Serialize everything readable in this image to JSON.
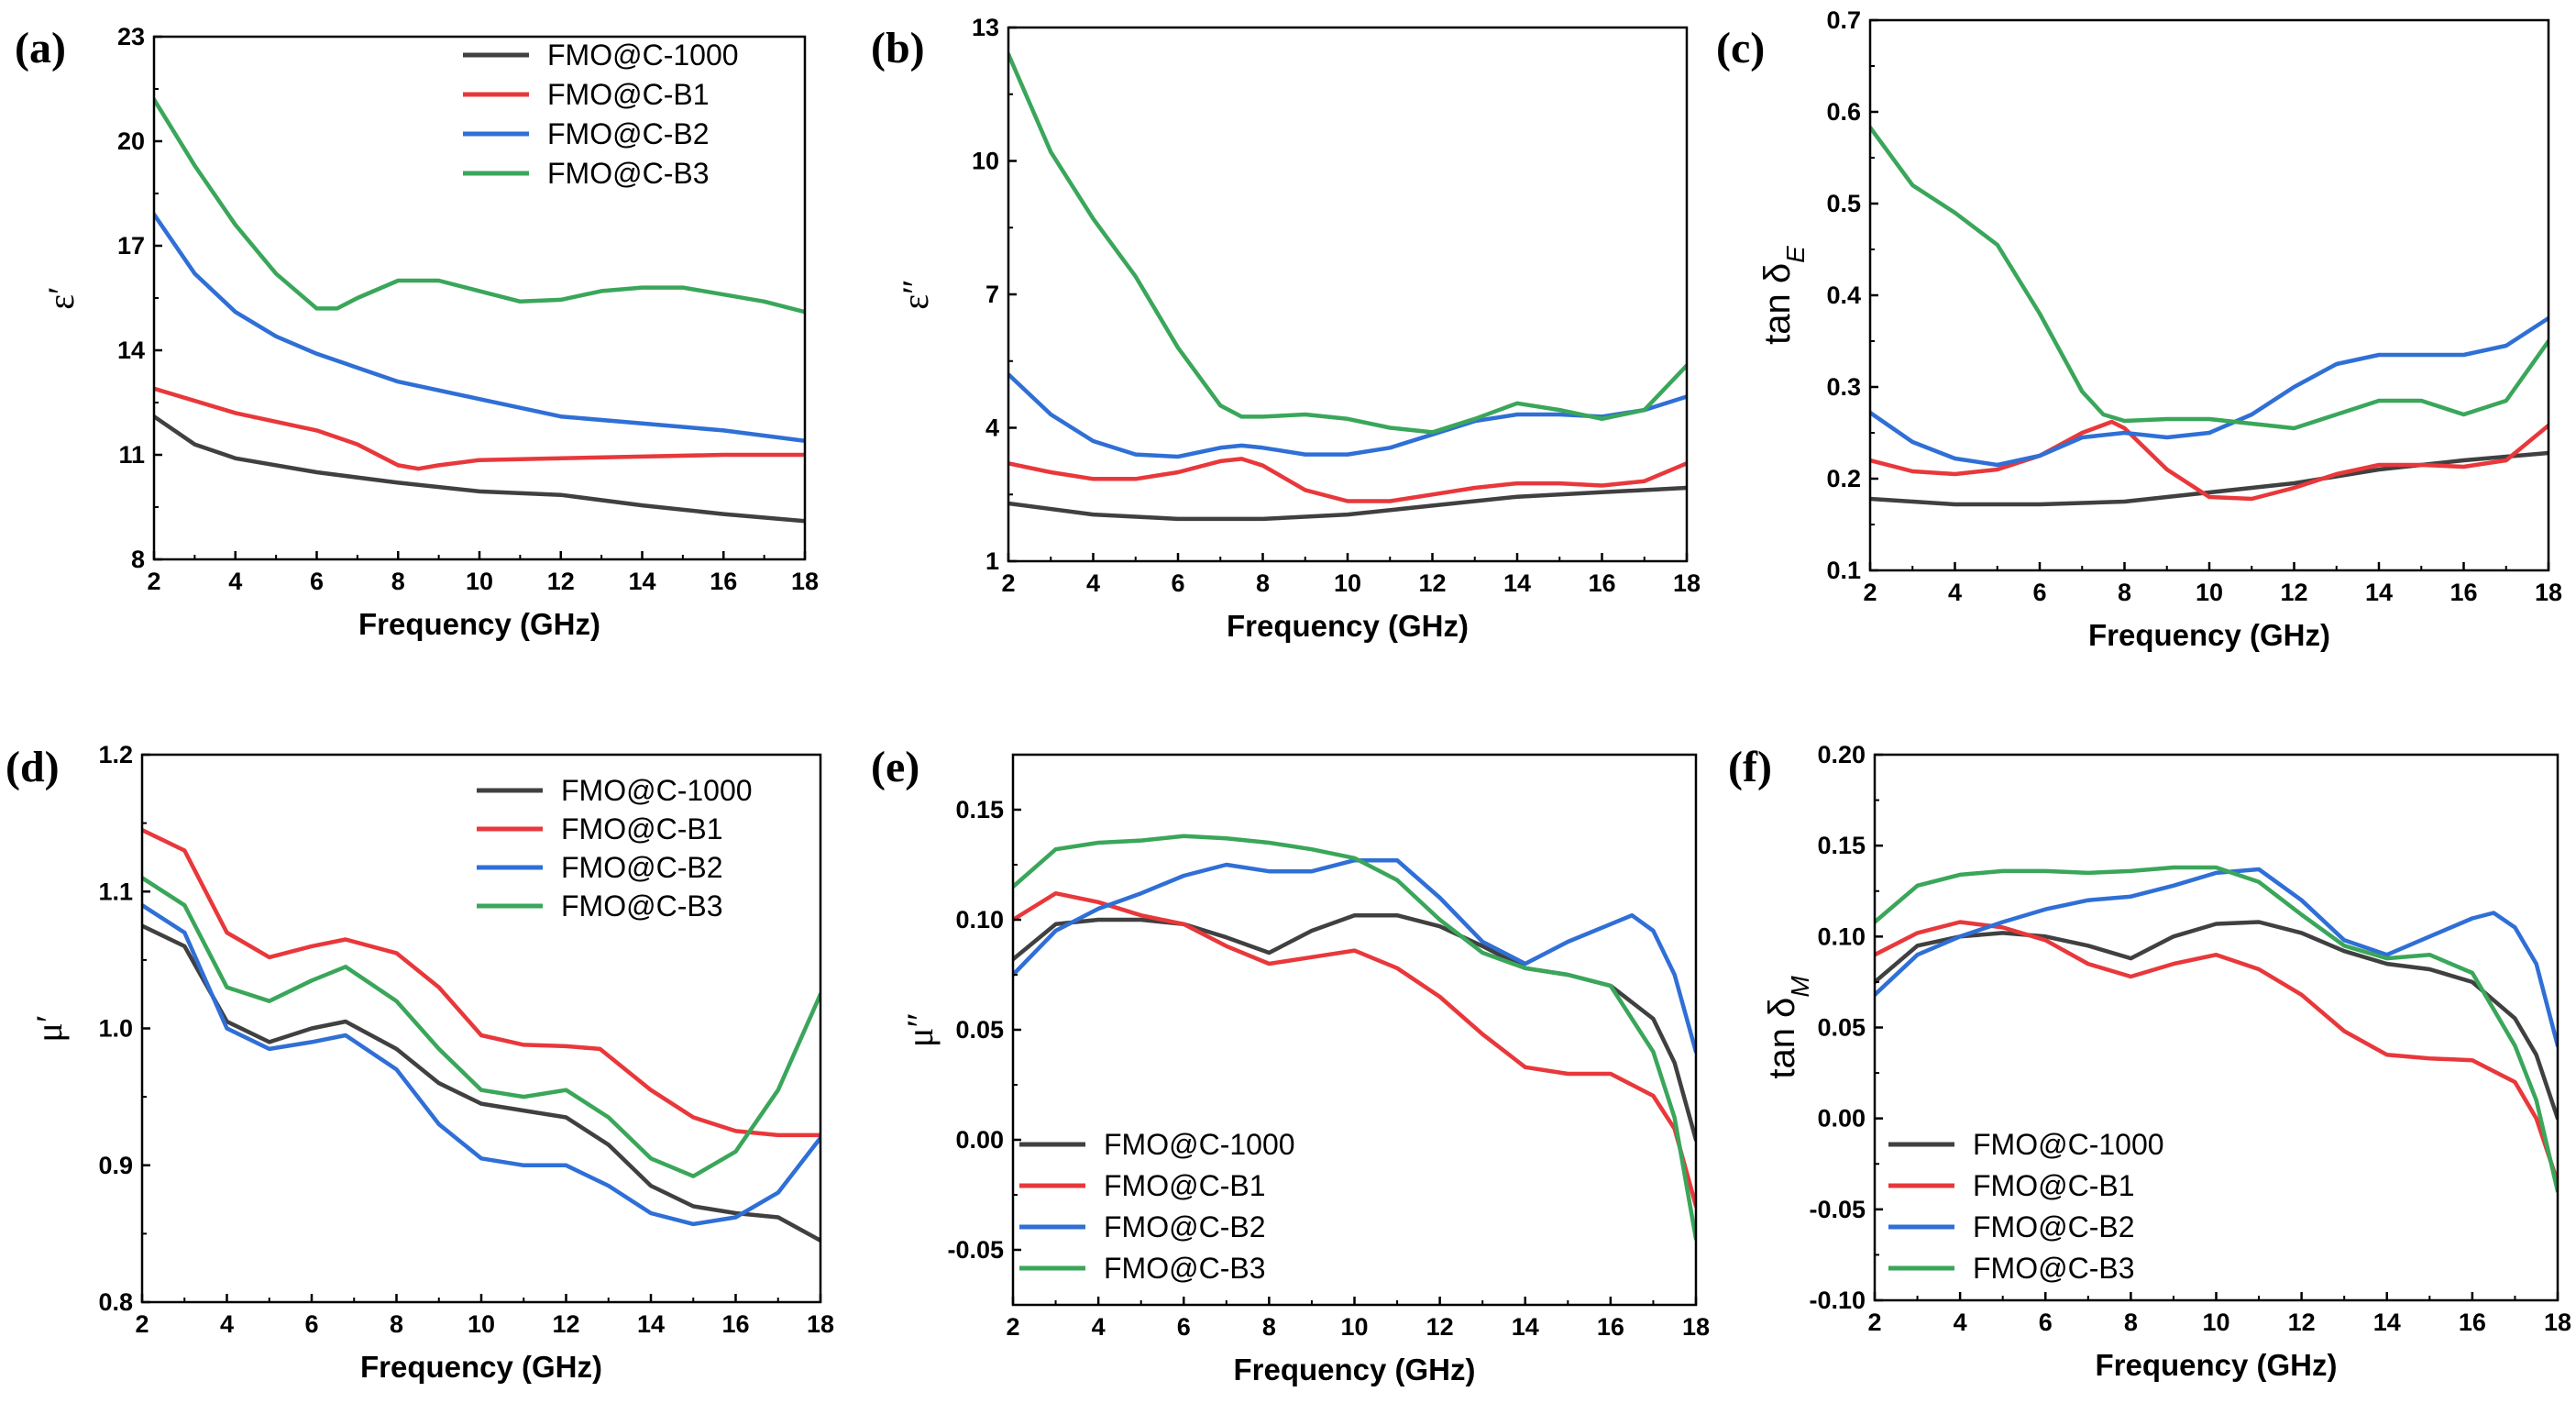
{
  "chart_data": [
    {
      "panel": "(a)",
      "type": "line",
      "xlabel": "Frequency (GHz)",
      "ylabel": "ε′",
      "xlim": [
        2,
        18
      ],
      "ylim": [
        8,
        23
      ],
      "xticks": [
        "2",
        "4",
        "6",
        "8",
        "10",
        "12",
        "14",
        "16",
        "18"
      ],
      "yticks": [
        "8",
        "11",
        "14",
        "17",
        "20",
        "23"
      ],
      "legend": "top-right",
      "series": [
        {
          "name": "FMO@C-1000",
          "x": [
            2,
            3,
            4,
            6,
            8,
            10,
            12,
            14,
            16,
            18
          ],
          "y": [
            12.1,
            11.3,
            10.9,
            10.5,
            10.2,
            9.95,
            9.85,
            9.55,
            9.3,
            9.1
          ]
        },
        {
          "name": "FMO@C-B1",
          "x": [
            2,
            4,
            6,
            7,
            8,
            8.5,
            9,
            10,
            12,
            14,
            16,
            18
          ],
          "y": [
            12.9,
            12.2,
            11.7,
            11.3,
            10.7,
            10.6,
            10.7,
            10.85,
            10.9,
            10.95,
            11.0,
            11.0
          ]
        },
        {
          "name": "FMO@C-B2",
          "x": [
            2,
            3,
            4,
            5,
            6,
            8,
            10,
            12,
            14,
            16,
            18
          ],
          "y": [
            17.9,
            16.2,
            15.1,
            14.4,
            13.9,
            13.1,
            12.6,
            12.1,
            11.9,
            11.7,
            11.4
          ]
        },
        {
          "name": "FMO@C-B3",
          "x": [
            2,
            3,
            4,
            5,
            6,
            6.5,
            7,
            8,
            9,
            10,
            11,
            12,
            13,
            14,
            15,
            16,
            17,
            18
          ],
          "y": [
            21.2,
            19.3,
            17.6,
            16.2,
            15.2,
            15.2,
            15.5,
            16.0,
            16.0,
            15.7,
            15.4,
            15.45,
            15.7,
            15.8,
            15.8,
            15.6,
            15.4,
            15.1
          ]
        }
      ]
    },
    {
      "panel": "(b)",
      "type": "line",
      "xlabel": "Frequency (GHz)",
      "ylabel": "ε″",
      "xlim": [
        2,
        18
      ],
      "ylim": [
        1,
        13
      ],
      "xticks": [
        "2",
        "4",
        "6",
        "8",
        "10",
        "12",
        "14",
        "16",
        "18"
      ],
      "yticks": [
        "1",
        "4",
        "7",
        "10",
        "13"
      ],
      "legend": "none",
      "series": [
        {
          "name": "FMO@C-1000",
          "x": [
            2,
            4,
            6,
            8,
            10,
            12,
            14,
            16,
            18
          ],
          "y": [
            2.3,
            2.05,
            1.95,
            1.95,
            2.05,
            2.25,
            2.45,
            2.55,
            2.65
          ]
        },
        {
          "name": "FMO@C-B1",
          "x": [
            2,
            3,
            4,
            5,
            6,
            7,
            7.5,
            8,
            9,
            10,
            11,
            12,
            13,
            14,
            15,
            16,
            17,
            18
          ],
          "y": [
            3.2,
            3.0,
            2.85,
            2.85,
            3.0,
            3.25,
            3.3,
            3.15,
            2.6,
            2.35,
            2.35,
            2.5,
            2.65,
            2.75,
            2.75,
            2.7,
            2.8,
            3.2
          ]
        },
        {
          "name": "FMO@C-B2",
          "x": [
            2,
            3,
            4,
            5,
            6,
            7,
            7.5,
            8,
            9,
            10,
            11,
            12,
            13,
            14,
            15,
            16,
            17,
            18
          ],
          "y": [
            5.2,
            4.3,
            3.7,
            3.4,
            3.35,
            3.55,
            3.6,
            3.55,
            3.4,
            3.4,
            3.55,
            3.85,
            4.15,
            4.3,
            4.3,
            4.25,
            4.4,
            4.7
          ]
        },
        {
          "name": "FMO@C-B3",
          "x": [
            2,
            3,
            4,
            5,
            6,
            7,
            7.5,
            8,
            9,
            10,
            11,
            12,
            13,
            14,
            15,
            16,
            17,
            18
          ],
          "y": [
            12.4,
            10.2,
            8.7,
            7.4,
            5.8,
            4.5,
            4.25,
            4.25,
            4.3,
            4.2,
            4.0,
            3.9,
            4.2,
            4.55,
            4.4,
            4.2,
            4.4,
            5.4
          ]
        }
      ]
    },
    {
      "panel": "(c)",
      "type": "line",
      "xlabel": "Frequency (GHz)",
      "ylabel": "tan δ",
      "ylabel_sub": "E",
      "xlim": [
        2,
        18
      ],
      "ylim": [
        0.1,
        0.7
      ],
      "xticks": [
        "2",
        "4",
        "6",
        "8",
        "10",
        "12",
        "14",
        "16",
        "18"
      ],
      "yticks": [
        "0.1",
        "0.2",
        "0.3",
        "0.4",
        "0.5",
        "0.6",
        "0.7"
      ],
      "legend": "none",
      "series": [
        {
          "name": "FMO@C-1000",
          "x": [
            2,
            4,
            6,
            8,
            10,
            12,
            14,
            16,
            18
          ],
          "y": [
            0.178,
            0.172,
            0.172,
            0.175,
            0.185,
            0.195,
            0.21,
            0.22,
            0.228
          ]
        },
        {
          "name": "FMO@C-B1",
          "x": [
            2,
            3,
            4,
            5,
            6,
            7,
            7.7,
            8,
            9,
            10,
            11,
            12,
            13,
            14,
            15,
            16,
            17,
            18
          ],
          "y": [
            0.22,
            0.208,
            0.205,
            0.21,
            0.225,
            0.25,
            0.262,
            0.255,
            0.21,
            0.18,
            0.178,
            0.19,
            0.205,
            0.215,
            0.215,
            0.213,
            0.22,
            0.258
          ]
        },
        {
          "name": "FMO@C-B2",
          "x": [
            2,
            3,
            4,
            5,
            6,
            7,
            8,
            9,
            10,
            11,
            12,
            13,
            14,
            15,
            16,
            17,
            18
          ],
          "y": [
            0.272,
            0.24,
            0.222,
            0.215,
            0.225,
            0.245,
            0.25,
            0.245,
            0.25,
            0.27,
            0.3,
            0.325,
            0.335,
            0.335,
            0.335,
            0.345,
            0.375
          ]
        },
        {
          "name": "FMO@C-B3",
          "x": [
            2,
            3,
            4,
            5,
            6,
            7,
            7.5,
            8,
            9,
            10,
            11,
            12,
            13,
            14,
            15,
            16,
            17,
            18
          ],
          "y": [
            0.583,
            0.52,
            0.49,
            0.455,
            0.38,
            0.295,
            0.27,
            0.263,
            0.265,
            0.265,
            0.26,
            0.255,
            0.27,
            0.285,
            0.285,
            0.27,
            0.285,
            0.35
          ]
        }
      ]
    },
    {
      "panel": "(d)",
      "type": "line",
      "xlabel": "Frequency (GHz)",
      "ylabel": "μ′",
      "xlim": [
        2,
        18
      ],
      "ylim": [
        0.8,
        1.2
      ],
      "xticks": [
        "2",
        "4",
        "6",
        "8",
        "10",
        "12",
        "14",
        "16",
        "18"
      ],
      "yticks": [
        "0.8",
        "0.9",
        "1.0",
        "1.1",
        "1.2"
      ],
      "legend": "top-right",
      "series": [
        {
          "name": "FMO@C-1000",
          "x": [
            2,
            3,
            4,
            5,
            6,
            6.8,
            8,
            9,
            10,
            11,
            12,
            13,
            14,
            15,
            16,
            17,
            18
          ],
          "y": [
            1.075,
            1.06,
            1.005,
            0.99,
            1.0,
            1.005,
            0.985,
            0.96,
            0.945,
            0.94,
            0.935,
            0.915,
            0.885,
            0.87,
            0.865,
            0.862,
            0.845
          ]
        },
        {
          "name": "FMO@C-B1",
          "x": [
            2,
            3,
            4,
            5,
            6,
            6.8,
            8,
            9,
            10,
            11,
            12,
            12.8,
            14,
            15,
            16,
            17,
            18
          ],
          "y": [
            1.145,
            1.13,
            1.07,
            1.052,
            1.06,
            1.065,
            1.055,
            1.03,
            0.995,
            0.988,
            0.987,
            0.985,
            0.955,
            0.935,
            0.925,
            0.922,
            0.922
          ]
        },
        {
          "name": "FMO@C-B2",
          "x": [
            2,
            3,
            4,
            5,
            6,
            6.8,
            8,
            9,
            10,
            11,
            12,
            13,
            14,
            15,
            16,
            17,
            18
          ],
          "y": [
            1.09,
            1.07,
            1.0,
            0.985,
            0.99,
            0.995,
            0.97,
            0.93,
            0.905,
            0.9,
            0.9,
            0.885,
            0.865,
            0.857,
            0.862,
            0.88,
            0.92
          ]
        },
        {
          "name": "FMO@C-B3",
          "x": [
            2,
            3,
            4,
            5,
            6,
            6.8,
            8,
            9,
            10,
            11,
            12,
            13,
            14,
            15,
            16,
            17,
            18
          ],
          "y": [
            1.11,
            1.09,
            1.03,
            1.02,
            1.035,
            1.045,
            1.02,
            0.985,
            0.955,
            0.95,
            0.955,
            0.935,
            0.905,
            0.892,
            0.91,
            0.955,
            1.025
          ]
        }
      ]
    },
    {
      "panel": "(e)",
      "type": "line",
      "xlabel": "Frequency (GHz)",
      "ylabel": "μ″",
      "xlim": [
        2,
        18
      ],
      "ylim": [
        -0.075,
        0.175
      ],
      "xticks": [
        "2",
        "4",
        "6",
        "8",
        "10",
        "12",
        "14",
        "16",
        "18"
      ],
      "yticks": [
        "-0.05",
        "0.00",
        "0.05",
        "0.10",
        "0.15"
      ],
      "legend": "bottom-left",
      "series": [
        {
          "name": "FMO@C-1000",
          "x": [
            2,
            3,
            4,
            5,
            6,
            7,
            8,
            9,
            10,
            11,
            12,
            13,
            14,
            15,
            16,
            17,
            17.5,
            18
          ],
          "y": [
            0.082,
            0.098,
            0.1,
            0.1,
            0.098,
            0.092,
            0.085,
            0.095,
            0.102,
            0.102,
            0.097,
            0.088,
            0.078,
            0.075,
            0.07,
            0.055,
            0.035,
            0.0
          ]
        },
        {
          "name": "FMO@C-B1",
          "x": [
            2,
            3,
            4,
            5,
            6,
            7,
            8,
            9,
            10,
            11,
            12,
            13,
            14,
            15,
            16,
            17,
            17.5,
            18
          ],
          "y": [
            0.1,
            0.112,
            0.108,
            0.102,
            0.098,
            0.088,
            0.08,
            0.083,
            0.086,
            0.078,
            0.065,
            0.048,
            0.033,
            0.03,
            0.03,
            0.02,
            0.005,
            -0.03
          ]
        },
        {
          "name": "FMO@C-B2",
          "x": [
            2,
            3,
            4,
            5,
            6,
            7,
            8,
            9,
            10,
            11,
            12,
            13,
            14,
            15,
            16,
            16.5,
            17,
            17.5,
            18
          ],
          "y": [
            0.075,
            0.095,
            0.105,
            0.112,
            0.12,
            0.125,
            0.122,
            0.122,
            0.127,
            0.127,
            0.11,
            0.09,
            0.08,
            0.09,
            0.098,
            0.102,
            0.095,
            0.075,
            0.04
          ]
        },
        {
          "name": "FMO@C-B3",
          "x": [
            2,
            3,
            4,
            5,
            6,
            7,
            8,
            9,
            10,
            11,
            12,
            13,
            14,
            15,
            16,
            17,
            17.5,
            18
          ],
          "y": [
            0.115,
            0.132,
            0.135,
            0.136,
            0.138,
            0.137,
            0.135,
            0.132,
            0.128,
            0.118,
            0.1,
            0.085,
            0.078,
            0.075,
            0.07,
            0.04,
            0.01,
            -0.045
          ]
        }
      ]
    },
    {
      "panel": "(f)",
      "type": "line",
      "xlabel": "Frequency (GHz)",
      "ylabel": "tan δ",
      "ylabel_sub": "M",
      "xlim": [
        2,
        18
      ],
      "ylim": [
        -0.1,
        0.2
      ],
      "xticks": [
        "2",
        "4",
        "6",
        "8",
        "10",
        "12",
        "14",
        "16",
        "18"
      ],
      "yticks": [
        "-0.10",
        "-0.05",
        "0.00",
        "0.05",
        "0.10",
        "0.15",
        "0.20"
      ],
      "legend": "bottom-left",
      "series": [
        {
          "name": "FMO@C-1000",
          "x": [
            2,
            3,
            4,
            5,
            6,
            7,
            8,
            9,
            10,
            11,
            12,
            13,
            14,
            15,
            16,
            17,
            17.5,
            18
          ],
          "y": [
            0.075,
            0.095,
            0.1,
            0.102,
            0.1,
            0.095,
            0.088,
            0.1,
            0.107,
            0.108,
            0.102,
            0.092,
            0.085,
            0.082,
            0.075,
            0.055,
            0.035,
            0.0
          ]
        },
        {
          "name": "FMO@C-B1",
          "x": [
            2,
            3,
            4,
            5,
            6,
            7,
            8,
            9,
            10,
            11,
            12,
            13,
            14,
            15,
            16,
            17,
            17.5,
            18
          ],
          "y": [
            0.09,
            0.102,
            0.108,
            0.105,
            0.098,
            0.085,
            0.078,
            0.085,
            0.09,
            0.082,
            0.068,
            0.048,
            0.035,
            0.033,
            0.032,
            0.02,
            0.0,
            -0.035
          ]
        },
        {
          "name": "FMO@C-B2",
          "x": [
            2,
            3,
            4,
            5,
            6,
            7,
            8,
            9,
            10,
            11,
            12,
            13,
            14,
            15,
            16,
            16.5,
            17,
            17.5,
            18
          ],
          "y": [
            0.068,
            0.09,
            0.1,
            0.108,
            0.115,
            0.12,
            0.122,
            0.128,
            0.135,
            0.137,
            0.12,
            0.098,
            0.09,
            0.1,
            0.11,
            0.113,
            0.105,
            0.085,
            0.04
          ]
        },
        {
          "name": "FMO@C-B3",
          "x": [
            2,
            3,
            4,
            5,
            6,
            7,
            8,
            9,
            10,
            11,
            12,
            13,
            14,
            15,
            16,
            17,
            17.5,
            18
          ],
          "y": [
            0.108,
            0.128,
            0.134,
            0.136,
            0.136,
            0.135,
            0.136,
            0.138,
            0.138,
            0.13,
            0.112,
            0.095,
            0.088,
            0.09,
            0.08,
            0.04,
            0.01,
            -0.04
          ]
        }
      ]
    }
  ],
  "series_colors": [
    "#404040",
    "#e8383b",
    "#2f6fd6",
    "#3aa65a"
  ]
}
